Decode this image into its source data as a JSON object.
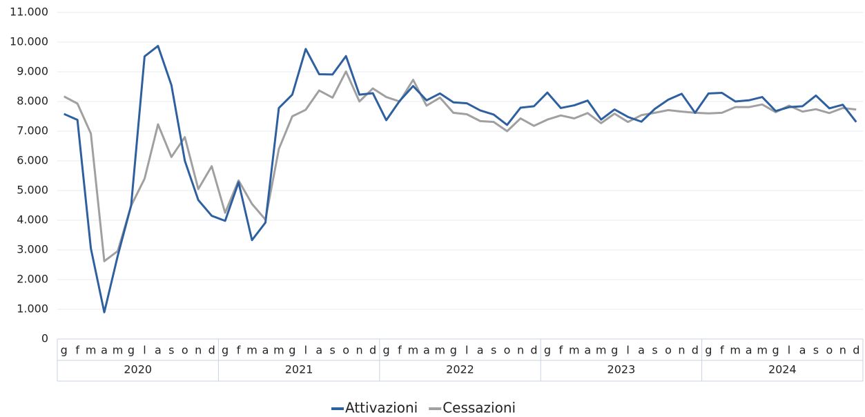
{
  "chart_data": {
    "type": "line",
    "categories": [
      "g",
      "f",
      "m",
      "a",
      "m",
      "g",
      "l",
      "a",
      "s",
      "o",
      "n",
      "d",
      "g",
      "f",
      "m",
      "a",
      "m",
      "g",
      "l",
      "a",
      "s",
      "o",
      "n",
      "d",
      "g",
      "f",
      "m",
      "a",
      "m",
      "g",
      "l",
      "a",
      "s",
      "o",
      "n",
      "d",
      "g",
      "f",
      "m",
      "a",
      "m",
      "g",
      "l",
      "a",
      "s",
      "o",
      "n",
      "d",
      "g",
      "f",
      "m",
      "a",
      "m",
      "g",
      "l",
      "a",
      "s",
      "o",
      "n",
      "d"
    ],
    "year_groups": [
      "2020",
      "2021",
      "2022",
      "2023",
      "2024"
    ],
    "series": [
      {
        "name": "Attivazioni",
        "color": "#2e5f9e",
        "values": [
          7580,
          7380,
          3050,
          900,
          2800,
          4500,
          9520,
          9870,
          8550,
          6000,
          4680,
          4150,
          3980,
          5280,
          3330,
          3920,
          7780,
          8230,
          9770,
          8920,
          8910,
          9530,
          8230,
          8280,
          7370,
          8020,
          8520,
          8040,
          8270,
          7970,
          7940,
          7700,
          7560,
          7210,
          7790,
          7840,
          8300,
          7780,
          7870,
          8030,
          7390,
          7730,
          7480,
          7320,
          7750,
          8060,
          8260,
          7620,
          8270,
          8290,
          8000,
          8040,
          8150,
          7680,
          7810,
          7840,
          8200,
          7770,
          7890,
          7310
        ]
      },
      {
        "name": "Cessazioni",
        "color": "#a0a0a0",
        "values": [
          8170,
          7930,
          6920,
          2620,
          2960,
          4490,
          5400,
          7230,
          6130,
          6800,
          5050,
          5820,
          4250,
          5340,
          4550,
          4020,
          6400,
          7500,
          7720,
          8370,
          8130,
          9010,
          8000,
          8440,
          8150,
          8000,
          8730,
          7860,
          8130,
          7620,
          7570,
          7340,
          7310,
          7000,
          7430,
          7180,
          7390,
          7530,
          7430,
          7610,
          7270,
          7590,
          7310,
          7540,
          7620,
          7710,
          7660,
          7620,
          7600,
          7620,
          7810,
          7810,
          7900,
          7640,
          7860,
          7660,
          7740,
          7610,
          7780,
          7730
        ]
      }
    ],
    "ylim": [
      0,
      11000
    ],
    "yticks": [
      0,
      {
        "value": 1000,
        "label": "1.000"
      },
      {
        "value": 2000,
        "label": "2.000"
      },
      {
        "value": 3000,
        "label": "3.000"
      },
      {
        "value": 4000,
        "label": "4.000"
      },
      {
        "value": 5000,
        "label": "5.000"
      },
      {
        "value": 6000,
        "label": "6.000"
      },
      {
        "value": 7000,
        "label": "7.000"
      },
      {
        "value": 8000,
        "label": "8.000"
      },
      {
        "value": 9000,
        "label": "9.000"
      },
      {
        "value": 10000,
        "label": "10.000"
      },
      {
        "value": 11000,
        "label": "11.000"
      }
    ],
    "grid": true,
    "legend": "bottom"
  }
}
